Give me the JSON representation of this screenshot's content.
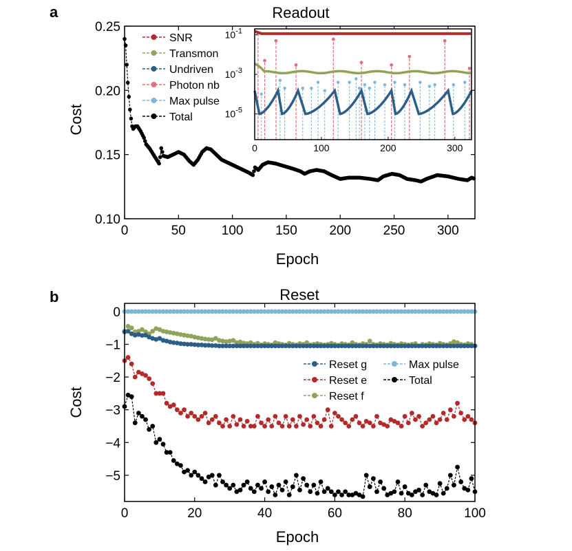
{
  "panels": [
    {
      "id": "a",
      "label": "a",
      "title": "Readout"
    },
    {
      "id": "b",
      "label": "b",
      "title": "Reset"
    }
  ],
  "chart_data": [
    {
      "id": "a",
      "type": "line",
      "title": "Readout",
      "xlabel": "Epoch",
      "ylabel": "Cost",
      "xlim": [
        0,
        325
      ],
      "ylim": [
        0.1,
        0.25
      ],
      "xticks": [
        "0",
        "50",
        "100",
        "150",
        "200",
        "250",
        "300"
      ],
      "yticks": [
        "0.10",
        "0.15",
        "0.20",
        "0.25"
      ],
      "legend": {
        "placement": "top-left",
        "entries": [
          "SNR",
          "Transmon",
          "Undriven",
          "Photon nb",
          "Max pulse",
          "Total"
        ]
      },
      "series": [
        {
          "name": "Total",
          "color": "#000000",
          "points": [
            [
              0,
              0.24
            ],
            [
              1,
              0.235
            ],
            [
              2,
              0.22
            ],
            [
              3,
              0.206
            ],
            [
              4,
              0.195
            ],
            [
              5,
              0.185
            ],
            [
              6,
              0.178
            ],
            [
              7,
              0.172
            ],
            [
              8,
              0.17
            ],
            [
              9,
              0.171
            ],
            [
              10,
              0.172
            ],
            [
              12,
              0.172
            ],
            [
              15,
              0.168
            ],
            [
              18,
              0.163
            ],
            [
              20,
              0.158
            ],
            [
              23,
              0.155
            ],
            [
              26,
              0.151
            ],
            [
              29,
              0.147
            ],
            [
              32,
              0.143
            ],
            [
              33,
              0.148
            ],
            [
              34,
              0.155
            ],
            [
              36,
              0.149
            ],
            [
              40,
              0.148
            ],
            [
              45,
              0.15
            ],
            [
              50,
              0.152
            ],
            [
              55,
              0.15
            ],
            [
              60,
              0.145
            ],
            [
              64,
              0.142
            ],
            [
              68,
              0.146
            ],
            [
              72,
              0.152
            ],
            [
              76,
              0.155
            ],
            [
              80,
              0.154
            ],
            [
              85,
              0.15
            ],
            [
              90,
              0.146
            ],
            [
              95,
              0.144
            ],
            [
              100,
              0.142
            ],
            [
              105,
              0.14
            ],
            [
              110,
              0.138
            ],
            [
              115,
              0.136
            ],
            [
              119,
              0.134
            ],
            [
              121,
              0.14
            ],
            [
              124,
              0.138
            ],
            [
              128,
              0.142
            ],
            [
              133,
              0.144
            ],
            [
              140,
              0.143
            ],
            [
              148,
              0.141
            ],
            [
              156,
              0.139
            ],
            [
              163,
              0.137
            ],
            [
              167,
              0.135
            ],
            [
              172,
              0.137
            ],
            [
              178,
              0.138
            ],
            [
              185,
              0.137
            ],
            [
              192,
              0.134
            ],
            [
              200,
              0.131
            ],
            [
              208,
              0.132
            ],
            [
              218,
              0.132
            ],
            [
              228,
              0.131
            ],
            [
              235,
              0.13
            ],
            [
              240,
              0.133
            ],
            [
              248,
              0.135
            ],
            [
              255,
              0.134
            ],
            [
              262,
              0.131
            ],
            [
              270,
              0.13
            ],
            [
              275,
              0.129
            ],
            [
              280,
              0.131
            ],
            [
              290,
              0.134
            ],
            [
              300,
              0.133
            ],
            [
              310,
              0.131
            ],
            [
              318,
              0.13
            ],
            [
              322,
              0.132
            ],
            [
              325,
              0.131
            ]
          ]
        }
      ],
      "inset": {
        "xlim": [
          0,
          325
        ],
        "ylim_log10": [
          -6.3,
          -0.7
        ],
        "xticks": [
          "0",
          "100",
          "200",
          "300"
        ],
        "yticks": [
          {
            "base": "10",
            "exp": "-1"
          },
          {
            "base": "10",
            "exp": "-3"
          },
          {
            "base": "10",
            "exp": "-5"
          }
        ],
        "yscale": "log",
        "series": [
          {
            "name": "SNR",
            "color": "#b22a2a",
            "start": 0.15,
            "level": 0.115
          },
          {
            "name": "Transmon",
            "color": "#8fa35a",
            "start": 0.0035,
            "level": 0.0013
          },
          {
            "name": "Undriven",
            "color": "#2c5e88",
            "peaks": [
              0,
              35,
              65,
              120,
              160,
              205,
              235,
              290,
              325
            ],
            "low": 1e-05,
            "high": 0.00015
          },
          {
            "name": "Photon nb",
            "color": "#e0707c",
            "spikes": [
              [
                5,
                0.12
              ],
              [
                15,
                0.005
              ],
              [
                32,
                0.05
              ],
              [
                62,
                0.003
              ],
              [
                118,
                0.06
              ],
              [
                160,
                0.004
              ],
              [
                205,
                0.003
              ],
              [
                232,
                0.008
              ],
              [
                285,
                0.05
              ],
              [
                322,
                0.002
              ]
            ]
          },
          {
            "name": "Max pulse",
            "color": "#7ab7d9",
            "spikes": [
              [
                10,
                0.0001
              ],
              [
                38,
                0.0005
              ],
              [
                45,
                0.0002
              ],
              [
                72,
                0.0002
              ],
              [
                85,
                0.0002
              ],
              [
                95,
                0.0004
              ],
              [
                105,
                0.00015
              ],
              [
                125,
                0.0004
              ],
              [
                142,
                0.0004
              ],
              [
                152,
                0.0006
              ],
              [
                157,
                0.0002
              ],
              [
                165,
                0.0003
              ],
              [
                172,
                0.0002
              ],
              [
                180,
                0.0004
              ],
              [
                195,
                0.0003
              ],
              [
                210,
                0.0004
              ],
              [
                225,
                0.0003
              ],
              [
                248,
                0.0004
              ],
              [
                262,
                0.00025
              ],
              [
                270,
                0.0003
              ],
              [
                298,
                0.0003
              ],
              [
                315,
                0.0004
              ]
            ]
          }
        ]
      }
    },
    {
      "id": "b",
      "type": "line",
      "title": "Reset",
      "xlabel": "Epoch",
      "ylabel": "Cost",
      "xlim": [
        0,
        100
      ],
      "ylim": [
        -5.8,
        0.25
      ],
      "xticks": [
        "0",
        "20",
        "40",
        "60",
        "80",
        "100"
      ],
      "yticks": [
        "0",
        "−1",
        "−2",
        "−3",
        "−4",
        "−5"
      ],
      "legend": {
        "placement": "center-right",
        "entries": [
          "Reset g",
          "Max pulse",
          "Reset e",
          "Total",
          "Reset f"
        ]
      },
      "series": [
        {
          "name": "Max pulse",
          "color": "#7ab7d9",
          "values": [
            0,
            0,
            0,
            0,
            0,
            0,
            0,
            0,
            0,
            0,
            0,
            0,
            0,
            0,
            0,
            0,
            0,
            0,
            0,
            0,
            0,
            0,
            0,
            0,
            0,
            0,
            0,
            0,
            0,
            0,
            0,
            0,
            0,
            0,
            0,
            0,
            0,
            0,
            0,
            0,
            0,
            0,
            0,
            0,
            0,
            0,
            0,
            0,
            0,
            0,
            0,
            0,
            0,
            0,
            0,
            0,
            0,
            0,
            0,
            0,
            0,
            0,
            0,
            0,
            0,
            0,
            0,
            0,
            0,
            0,
            0,
            0,
            0,
            0,
            0,
            0,
            0,
            0,
            0,
            0,
            0,
            0,
            0,
            0,
            0,
            0,
            0,
            0,
            0,
            0,
            0,
            0,
            0,
            0,
            0,
            0,
            0,
            0,
            0,
            0,
            0
          ]
        },
        {
          "name": "Reset f",
          "color": "#8fa35a",
          "values": [
            -0.6,
            -0.45,
            -0.5,
            -0.62,
            -0.6,
            -0.55,
            -0.62,
            -0.68,
            -0.6,
            -0.52,
            -0.55,
            -0.6,
            -0.62,
            -0.64,
            -0.66,
            -0.68,
            -0.7,
            -0.72,
            -0.74,
            -0.75,
            -0.78,
            -0.8,
            -0.82,
            -0.84,
            -0.85,
            -0.86,
            -0.82,
            -0.88,
            -0.9,
            -0.92,
            -0.9,
            -0.88,
            -0.95,
            -0.93,
            -0.96,
            -0.98,
            -0.95,
            -1.0,
            -0.97,
            -1.02,
            -0.98,
            -1.0,
            -1.02,
            -0.95,
            -0.98,
            -1.0,
            -1.02,
            -0.97,
            -1.0,
            -1.02,
            -0.98,
            -1.0,
            -0.95,
            -1.02,
            -1.0,
            -0.98,
            -1.0,
            -1.02,
            -1.0,
            -0.97,
            -1.0,
            -1.03,
            -0.98,
            -1.0,
            -1.02,
            -0.95,
            -1.0,
            -1.02,
            -0.98,
            -1.0,
            -0.9,
            -1.0,
            -1.02,
            -0.98,
            -1.0,
            -1.02,
            -0.97,
            -1.0,
            -1.02,
            -0.98,
            -1.0,
            -1.02,
            -1.0,
            -0.98,
            -1.05,
            -1.0,
            -1.02,
            -0.98,
            -1.0,
            -1.02,
            -0.97,
            -1.0,
            -1.02,
            -0.98,
            -0.92,
            -0.95,
            -1.0,
            -1.02,
            -0.98,
            -1.0,
            -1.05
          ]
        },
        {
          "name": "Reset g",
          "color": "#2c5e88",
          "values": [
            -0.62,
            -0.6,
            -0.68,
            -0.72,
            -0.7,
            -0.73,
            -0.72,
            -0.78,
            -0.82,
            -0.85,
            -0.82,
            -0.88,
            -0.9,
            -0.93,
            -0.95,
            -0.96,
            -0.98,
            -0.99,
            -1.0,
            -1.0,
            -1.01,
            -1.02,
            -1.02,
            -1.03,
            -1.03,
            -1.04,
            -1.04,
            -1.05,
            -1.05,
            -1.05,
            -1.05,
            -1.05,
            -1.05,
            -1.05,
            -1.05,
            -1.05,
            -1.05,
            -1.05,
            -1.05,
            -1.05,
            -1.05,
            -1.05,
            -1.05,
            -1.05,
            -1.05,
            -1.05,
            -1.05,
            -1.05,
            -1.05,
            -1.05,
            -1.05,
            -1.05,
            -1.05,
            -1.05,
            -1.05,
            -1.05,
            -1.05,
            -1.05,
            -1.05,
            -1.05,
            -1.05,
            -1.05,
            -1.05,
            -1.05,
            -1.05,
            -1.05,
            -1.05,
            -1.05,
            -1.05,
            -1.05,
            -1.05,
            -1.05,
            -1.05,
            -1.05,
            -1.05,
            -1.05,
            -1.05,
            -1.05,
            -1.05,
            -1.05,
            -1.05,
            -1.05,
            -1.05,
            -1.05,
            -1.05,
            -1.05,
            -1.05,
            -1.05,
            -1.05,
            -1.05,
            -1.05,
            -1.05,
            -1.05,
            -1.05,
            -1.05,
            -1.05,
            -1.05,
            -1.05,
            -1.05,
            -1.05,
            -1.05
          ]
        },
        {
          "name": "Reset e",
          "color": "#b22a2a",
          "values": [
            -1.5,
            -1.4,
            -1.6,
            -2.0,
            -1.85,
            -1.9,
            -1.95,
            -2.05,
            -2.2,
            -2.5,
            -2.5,
            -2.5,
            -2.8,
            -2.9,
            -2.85,
            -3.0,
            -3.1,
            -3.0,
            -3.2,
            -3.1,
            -3.2,
            -3.3,
            -3.2,
            -3.1,
            -3.4,
            -3.3,
            -3.2,
            -3.4,
            -3.5,
            -3.3,
            -3.5,
            -3.2,
            -3.45,
            -3.3,
            -3.5,
            -3.35,
            -3.5,
            -3.5,
            -3.2,
            -3.4,
            -3.5,
            -3.3,
            -3.5,
            -3.2,
            -3.4,
            -3.5,
            -3.2,
            -3.5,
            -3.3,
            -3.5,
            -3.2,
            -3.45,
            -3.3,
            -3.5,
            -3.2,
            -3.4,
            -3.5,
            -3.3,
            -3.0,
            -3.5,
            -3.1,
            -3.2,
            -3.3,
            -3.4,
            -3.5,
            -3.3,
            -3.2,
            -3.4,
            -3.5,
            -3.35,
            -3.4,
            -3.5,
            -3.2,
            -3.4,
            -3.45,
            -3.5,
            -3.3,
            -3.35,
            -3.4,
            -3.5,
            -3.2,
            -3.4,
            -3.1,
            -3.3,
            -3.2,
            -3.5,
            -3.4,
            -3.3,
            -3.2,
            -3.4,
            -3.3,
            -3.1,
            -3.3,
            -3.0,
            -3.2,
            -2.8,
            -3.1,
            -3.3,
            -3.2,
            -3.3,
            -3.4
          ]
        },
        {
          "name": "Total",
          "color": "#000000",
          "values": [
            -2.9,
            -2.55,
            -2.6,
            -3.4,
            -3.1,
            -3.2,
            -3.3,
            -3.6,
            -3.5,
            -4.0,
            -3.9,
            -4.05,
            -4.3,
            -4.3,
            -4.55,
            -4.65,
            -4.7,
            -4.9,
            -4.85,
            -5.0,
            -4.9,
            -5.0,
            -5.1,
            -5.2,
            -5.05,
            -5.0,
            -5.3,
            -5.0,
            -5.2,
            -5.3,
            -5.4,
            -5.3,
            -5.5,
            -5.45,
            -5.3,
            -5.2,
            -5.4,
            -5.5,
            -5.3,
            -5.4,
            -5.2,
            -5.5,
            -5.35,
            -5.6,
            -5.3,
            -5.45,
            -5.2,
            -5.6,
            -5.35,
            -5.0,
            -5.45,
            -5.1,
            -5.3,
            -5.5,
            -5.3,
            -5.55,
            -5.2,
            -5.5,
            -5.4,
            -5.5,
            -5.6,
            -5.5,
            -5.6,
            -5.5,
            -5.6,
            -5.6,
            -5.55,
            -5.6,
            -5.65,
            -5.0,
            -5.35,
            -5.1,
            -5.5,
            -5.2,
            -5.4,
            -5.6,
            -5.55,
            -5.5,
            -5.2,
            -5.55,
            -5.35,
            -5.55,
            -5.6,
            -5.5,
            -5.45,
            -5.6,
            -5.3,
            -5.5,
            -5.55,
            -5.6,
            -5.25,
            -5.55,
            -5.4,
            -5.0,
            -5.3,
            -4.75,
            -5.2,
            -5.4,
            -5.45,
            -5.1,
            -5.5
          ]
        }
      ]
    }
  ]
}
